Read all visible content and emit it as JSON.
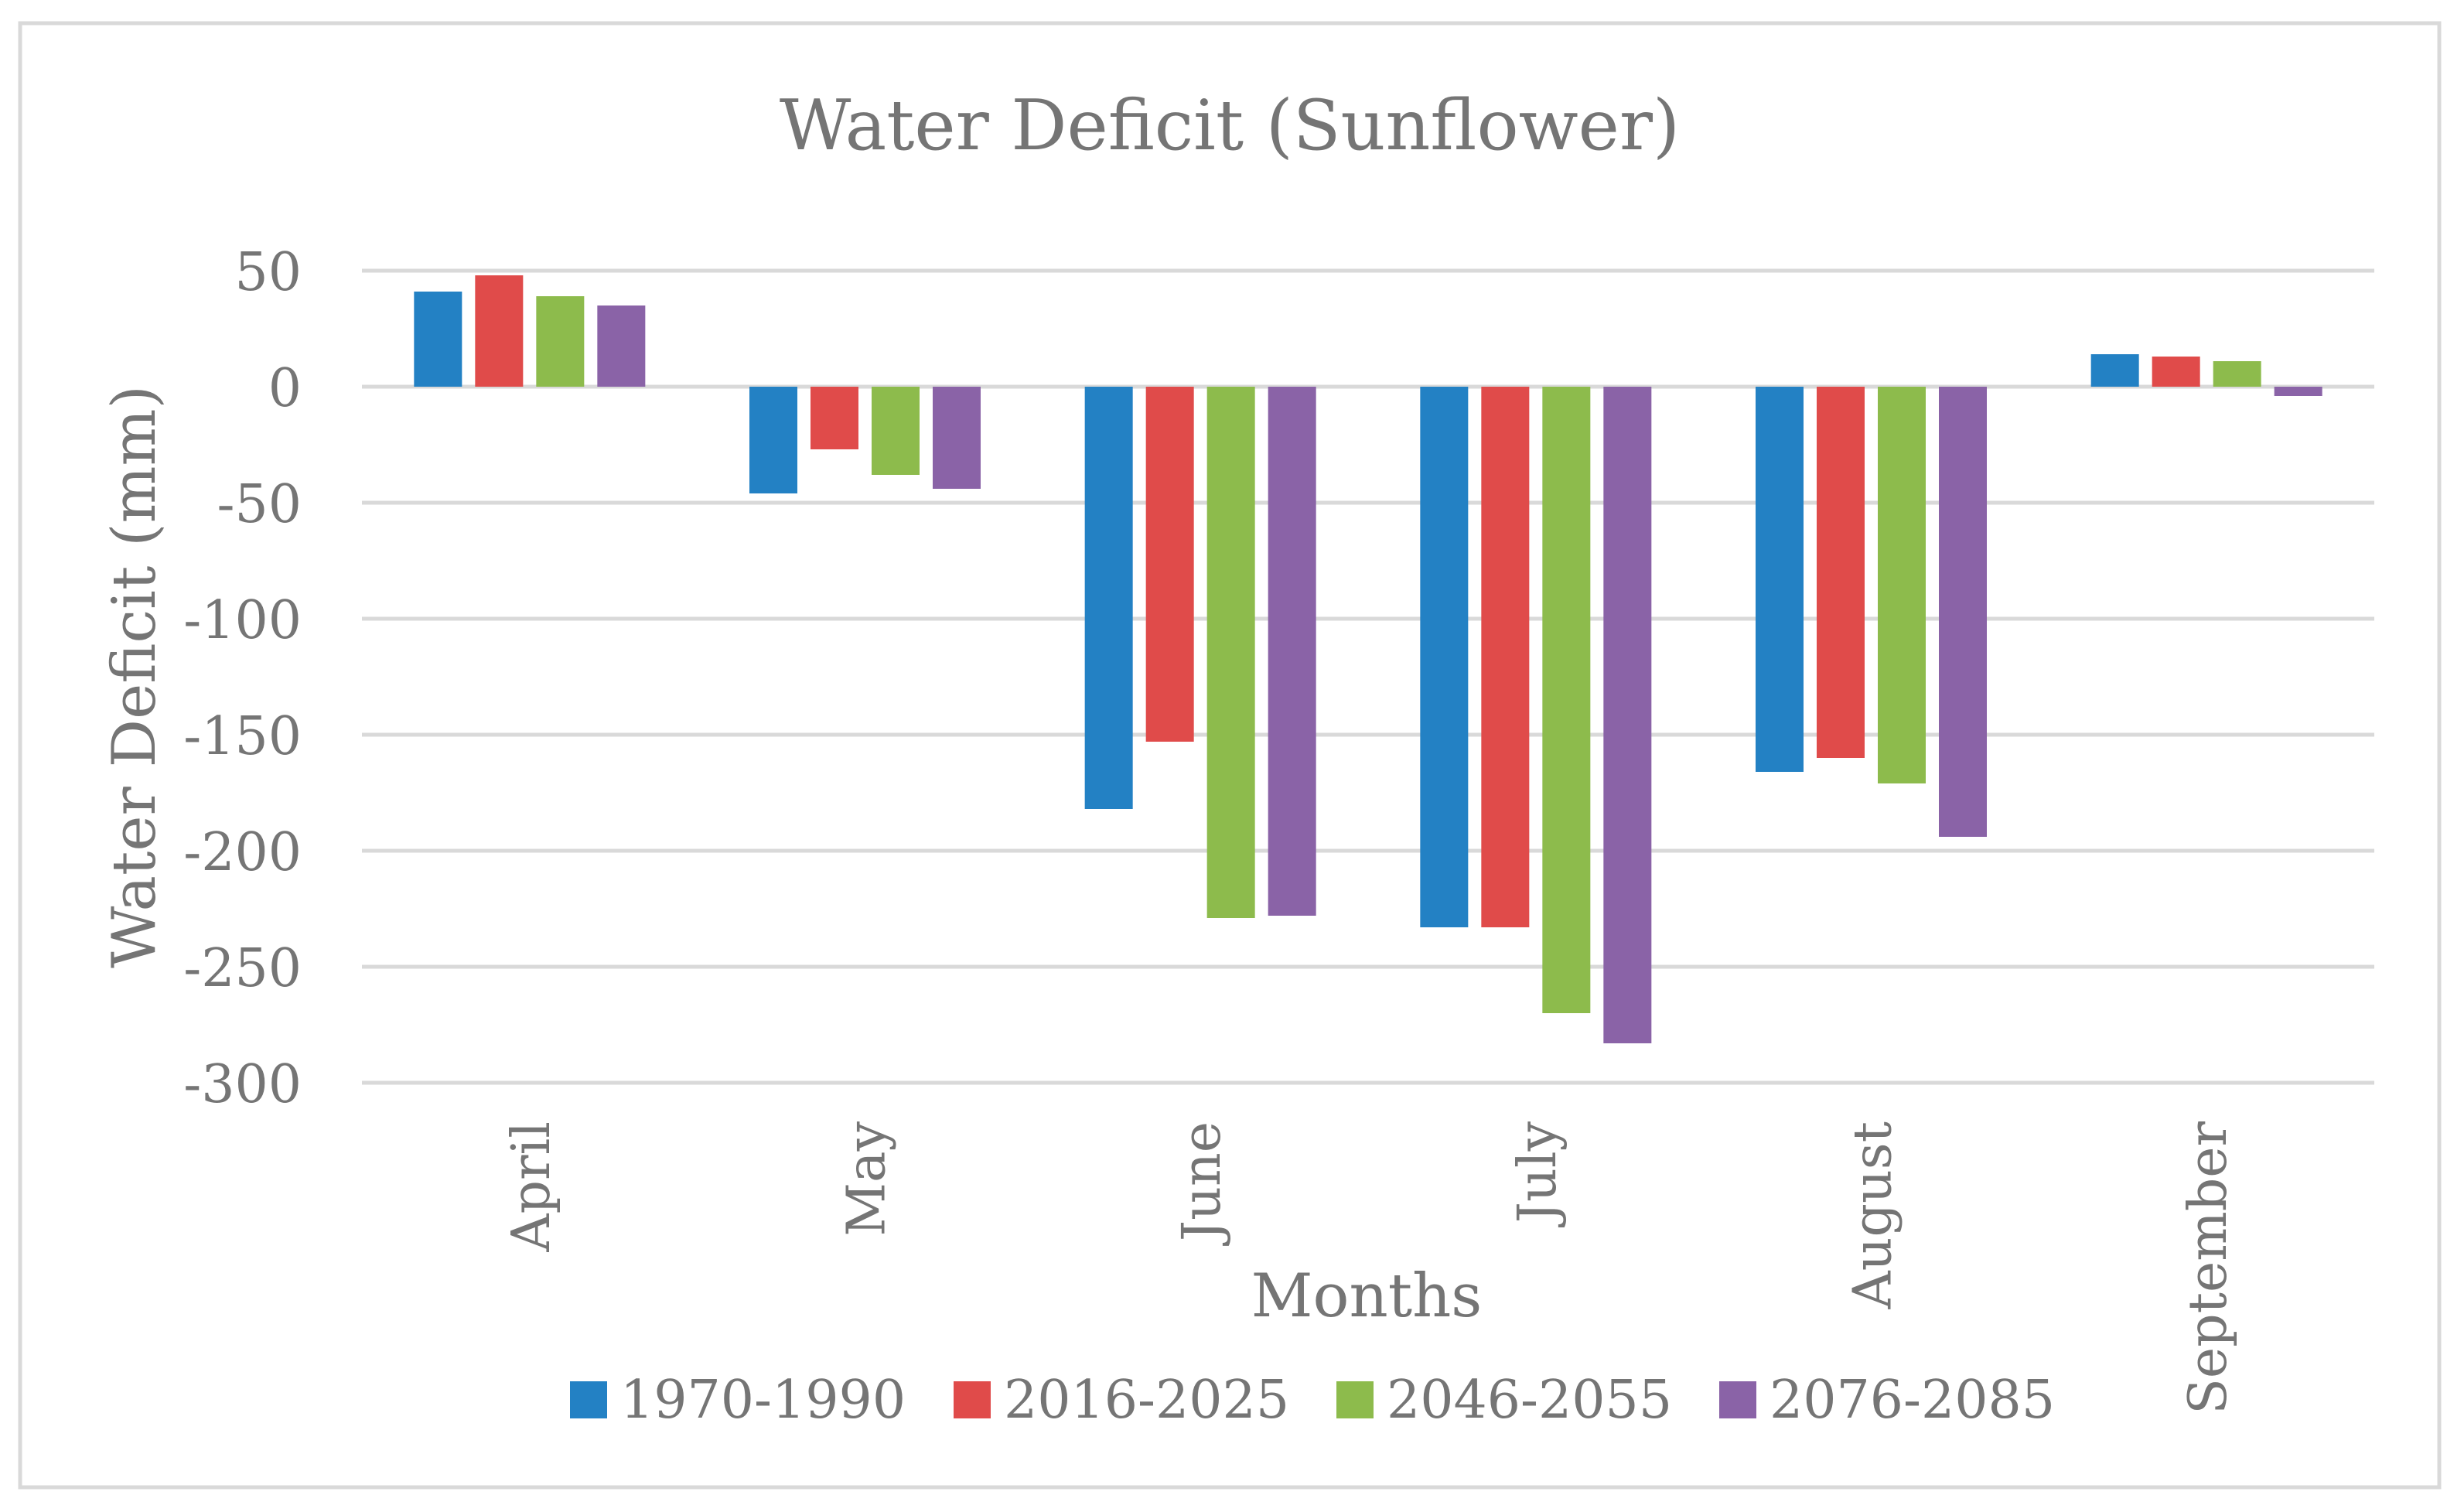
{
  "chart_data": {
    "type": "bar",
    "title": "Water Deficit (Sunflower)",
    "xlabel": "Months",
    "ylabel": "Water Deficit (mm)",
    "categories": [
      "April",
      "May",
      "June",
      "July",
      "August",
      "September"
    ],
    "ylim": [
      -300,
      50
    ],
    "yticks": [
      50,
      0,
      -50,
      -100,
      -150,
      -200,
      -250,
      -300
    ],
    "grid": true,
    "legend_position": "bottom",
    "series": [
      {
        "name": "1970-1990",
        "color": "#2381C4",
        "values": [
          41,
          -46,
          -182,
          -233,
          -166,
          14
        ]
      },
      {
        "name": "2016-2025",
        "color": "#E04B4A",
        "values": [
          48,
          -27,
          -153,
          -233,
          -160,
          13
        ]
      },
      {
        "name": "2046-2055",
        "color": "#8DBB4C",
        "values": [
          39,
          -38,
          -229,
          -270,
          -171,
          11
        ]
      },
      {
        "name": "2076-2085",
        "color": "#8A63A7",
        "values": [
          35,
          -44,
          -228,
          -283,
          -194,
          -4
        ]
      }
    ]
  }
}
